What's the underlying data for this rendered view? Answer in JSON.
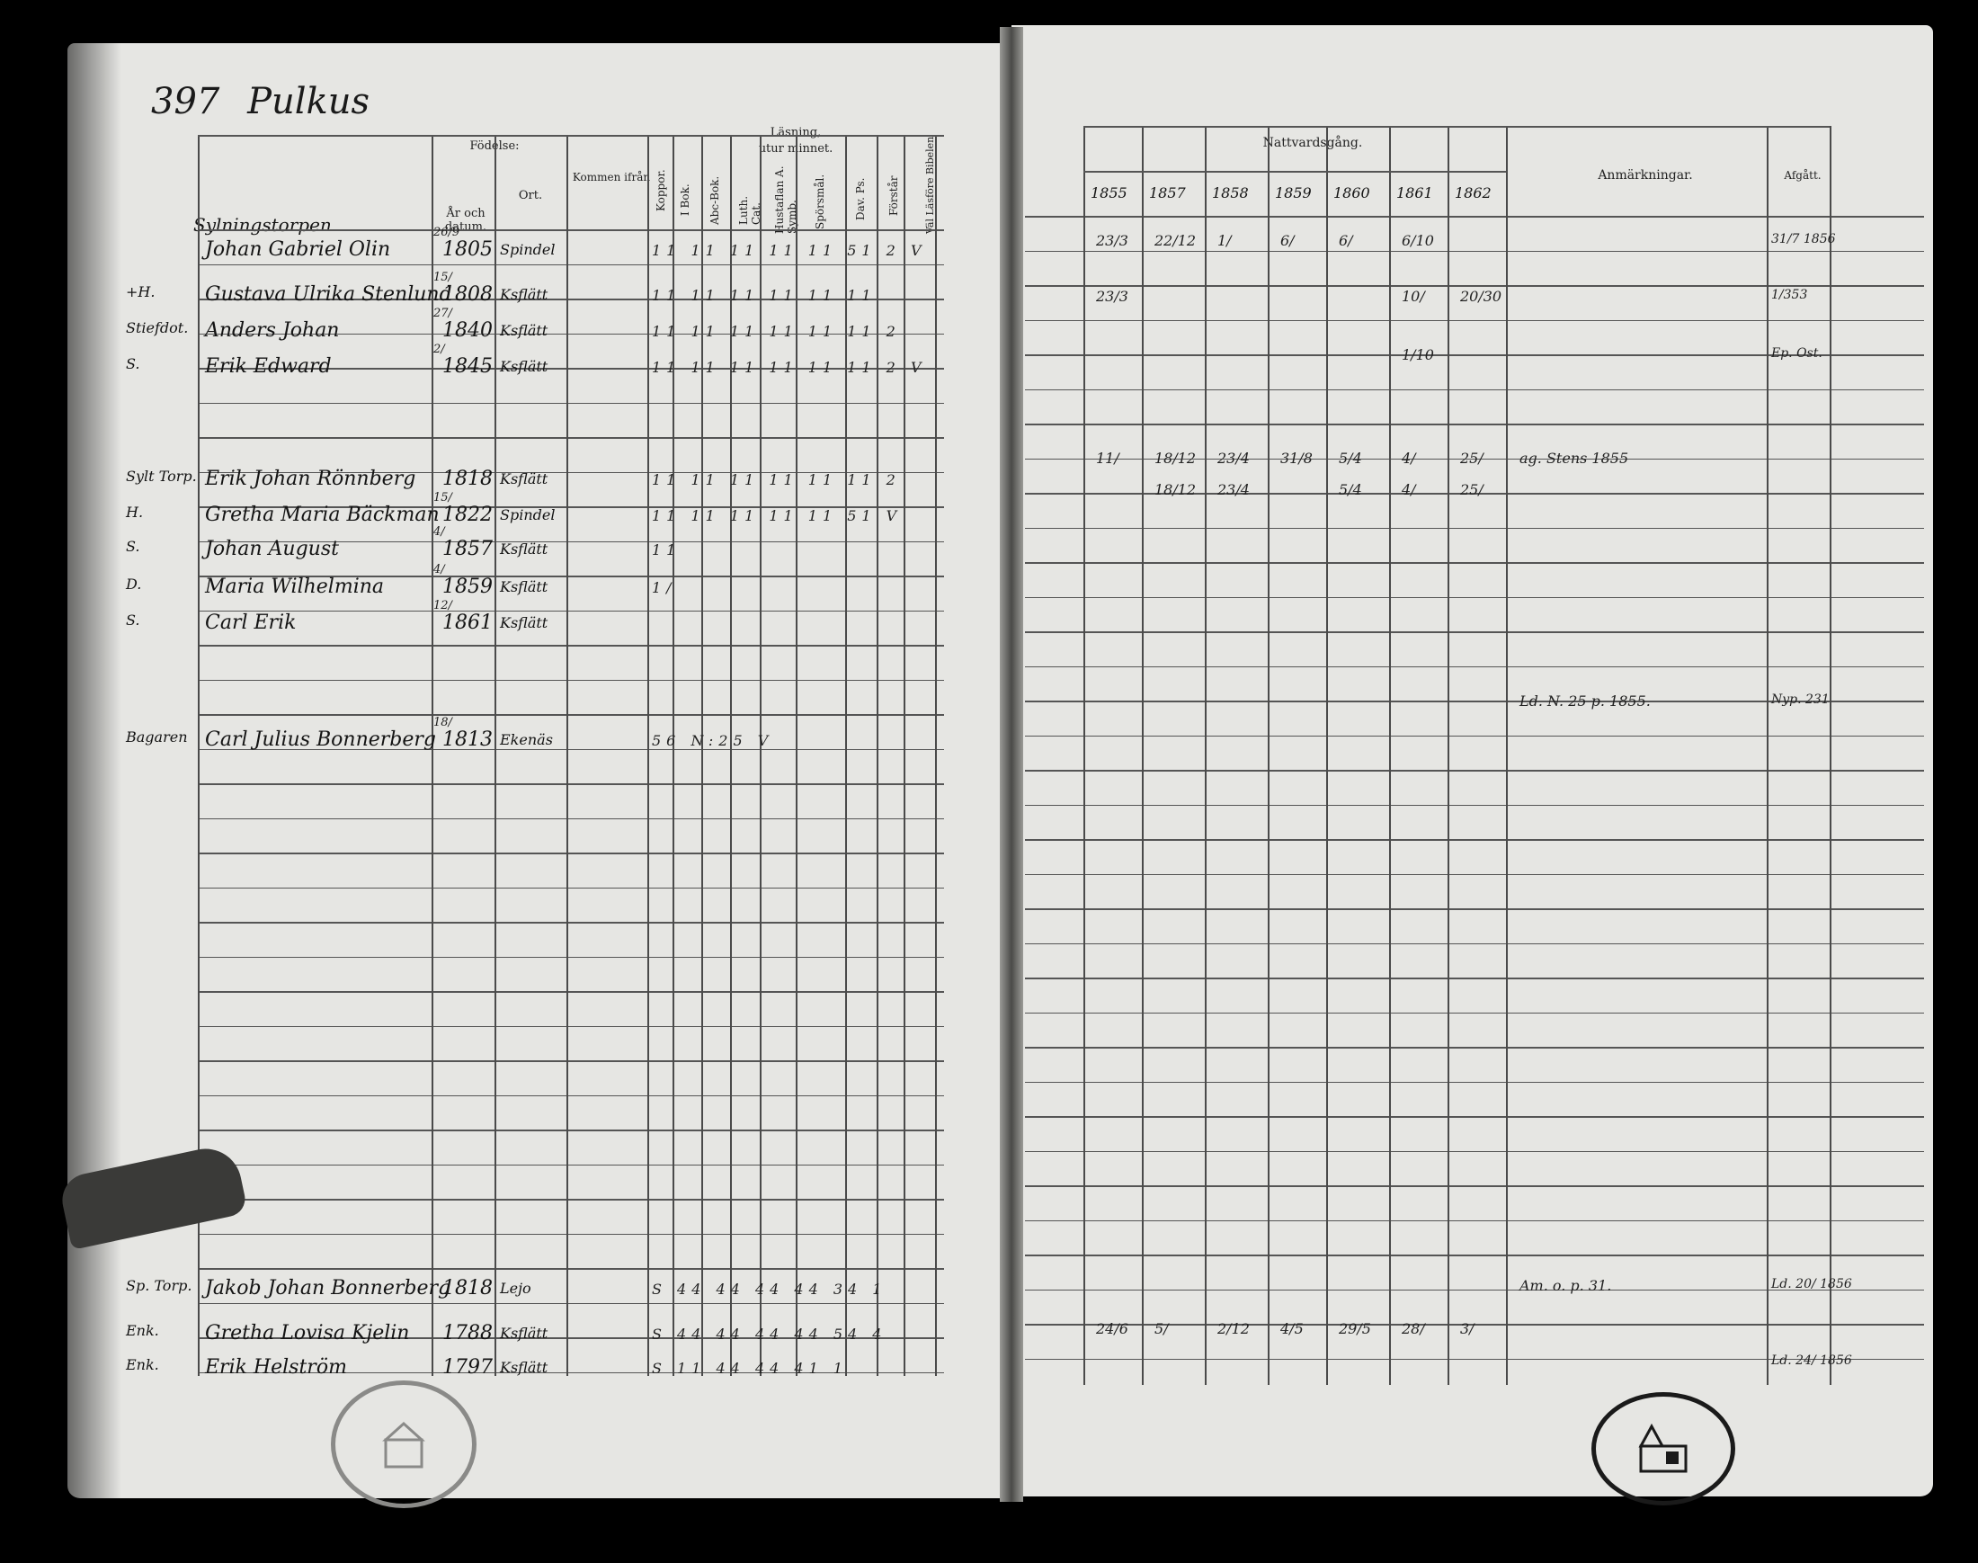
{
  "left_page": {
    "page_number": "397",
    "place_name": "Pulkus",
    "headers": {
      "fodelse": "Födelse:",
      "ar_och_datum": "År och datum.",
      "ort": "Ort.",
      "kommen_ifran": "Kommen ifrån",
      "kopper": "Koppor.",
      "lasning": "Läsning,",
      "utur_minnet": "utur minnet.",
      "i_bok": "I Bok.",
      "abc_bok": "Abc-Bok.",
      "luth_cat": "Luth. Cat.",
      "hustaflan_a_symb": "Hustaflan A. Symb.",
      "sporsmal": "Spörsmål.",
      "dav_ps": "Dav. Ps.",
      "forstar": "Förstår",
      "val_lastfor": "Väl Läsföre Bibelen"
    },
    "section_label": "Sylningstorpen",
    "rows": [
      {
        "role": "",
        "name": "Johan Gabriel Olin",
        "year": "1805",
        "day": "26/9",
        "place": "Spindel",
        "marks": "11 11 11 11 11 51  2  V"
      },
      {
        "role": "+H.",
        "name": "Gustava Ulrika Stenlund",
        "year": "1808",
        "day": "15/",
        "place": "Ksflätt",
        "marks": "11 11 11 11 11 11"
      },
      {
        "role": "Stiefdot.",
        "name": "Anders Johan",
        "year": "1840",
        "day": "27/",
        "place": "Ksflätt",
        "marks": "11 11 11 11 11 11  2"
      },
      {
        "role": "S.",
        "name": "Erik Edward",
        "year": "1845",
        "day": "2/",
        "place": "Ksflätt",
        "marks": "11 11 11 11 11 11  2  V"
      },
      {
        "role": "Sylt Torp.",
        "name": "Erik Johan Rönnberg",
        "year": "1818",
        "day": "",
        "place": "Ksflätt",
        "marks": "11 11 11 11 11 11  2"
      },
      {
        "role": "H.",
        "name": "Gretha Maria Bäckman",
        "year": "1822",
        "day": "15/",
        "place": "Spindel",
        "marks": "11 11 11 11 11 51  V"
      },
      {
        "role": "S.",
        "name": "Johan August",
        "year": "1857",
        "day": "4/",
        "place": "Ksflätt",
        "marks": "11"
      },
      {
        "role": "D.",
        "name": "Maria Wilhelmina",
        "year": "1859",
        "day": "4/",
        "place": "Ksflätt",
        "marks": "1/"
      },
      {
        "role": "S.",
        "name": "Carl Erik",
        "year": "1861",
        "day": "12/",
        "place": "Ksflätt",
        "marks": ""
      },
      {
        "role": "Bagaren",
        "name": "Carl Julius Bonnerberg",
        "year": "1813",
        "day": "18/",
        "place": "Ekenäs",
        "marks": "56 N:25  V"
      },
      {
        "role": "Sp. Torp.",
        "name": "Jakob Johan Bonnerberg",
        "year": "1818",
        "day": "",
        "place": "Lejo",
        "marks": "S 44 44 44 44 34  1"
      },
      {
        "role": "Enk.",
        "name": "Gretha Lovisa Kjelin",
        "year": "1788",
        "day": "",
        "place": "Ksflätt",
        "marks": "S 44 44 44 44 54  4"
      },
      {
        "role": "Enk.",
        "name": "Erik Helström",
        "year": "1797",
        "day": "",
        "place": "Ksflätt",
        "marks": "S 11 44 44 41  1"
      }
    ]
  },
  "right_page": {
    "headers": {
      "nattvardsgang": "Nattvardsgång.",
      "anmarkningar": "Anmärkningar.",
      "afgatt": "Afgått."
    },
    "years": [
      "1855",
      "1857",
      "1858",
      "1859",
      "1860",
      "1861",
      "1862"
    ],
    "entries": [
      {
        "row": 0,
        "cells": [
          "23/3",
          "22/12",
          "1/",
          "6/",
          "6/",
          "6/10",
          ""
        ],
        "note": "",
        "afgatt": "31/7 1856"
      },
      {
        "row": 1,
        "cells": [
          "23/3",
          "",
          "",
          "",
          "",
          "10/",
          "20/30"
        ],
        "note": "",
        "afgatt": "1/353"
      },
      {
        "row": 3,
        "cells": [
          "",
          "",
          "",
          "",
          "",
          "1/10",
          ""
        ],
        "note": "",
        "afgatt": "Ep. Ost."
      },
      {
        "row": 4,
        "cells": [
          "11/",
          "18/12",
          "23/4",
          "31/8",
          "5/4",
          "4/",
          "25/"
        ],
        "note": "ag. Stens 1855",
        "afgatt": ""
      },
      {
        "row": 5,
        "cells": [
          "",
          "18/12",
          "23/4",
          "",
          "5/4",
          "4/",
          "25/"
        ],
        "note": "",
        "afgatt": ""
      },
      {
        "row": 9,
        "cells": [
          "",
          "",
          "",
          "",
          "",
          "",
          ""
        ],
        "note": "Ld. N. 25 p. 1855.",
        "afgatt": "Nyp. 231"
      },
      {
        "row": 10,
        "cells": [
          "",
          "",
          "",
          "",
          "",
          "",
          ""
        ],
        "note": "Am. o. p. 31.",
        "afgatt": "Ld. 20/ 1856"
      },
      {
        "row": 11,
        "cells": [
          "24/6",
          "5/",
          "2/12",
          "4/5",
          "29/5",
          "28/",
          "3/"
        ],
        "note": "",
        "afgatt": ""
      },
      {
        "row": 12,
        "cells": [
          "",
          "",
          "",
          "",
          "",
          "",
          ""
        ],
        "note": "",
        "afgatt": "Ld. 24/ 1856"
      }
    ]
  },
  "stamps": [
    "stamp-left",
    "stamp-right"
  ]
}
